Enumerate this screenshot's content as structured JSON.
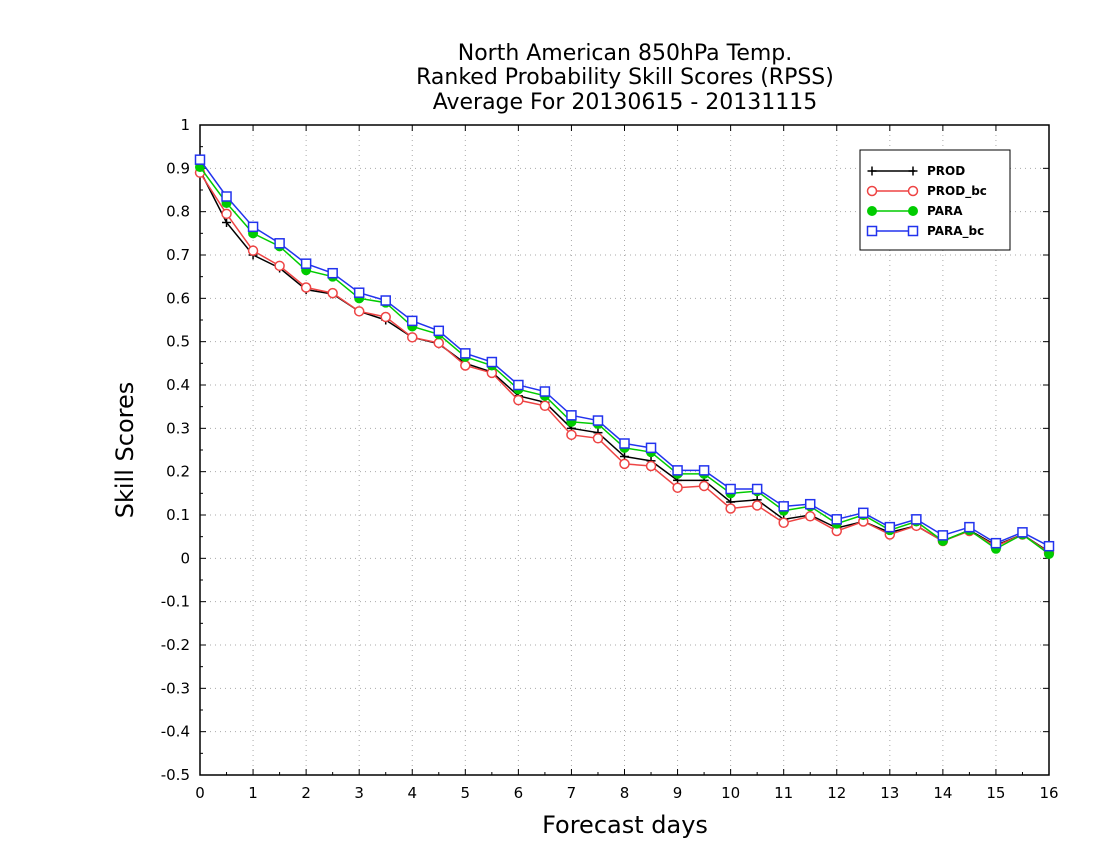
{
  "chart_data": {
    "type": "line",
    "title_lines": [
      "North American 850hPa Temp.",
      "Ranked Probability Skill Scores (RPSS)",
      "Average For 20130615 - 20131115"
    ],
    "xlabel": "Forecast days",
    "ylabel": "Skill Scores",
    "xlim": [
      0,
      16
    ],
    "ylim": [
      -0.5,
      1
    ],
    "x_ticks": [
      "0",
      "1",
      "2",
      "3",
      "4",
      "5",
      "6",
      "7",
      "8",
      "9",
      "10",
      "11",
      "12",
      "13",
      "14",
      "15",
      "16"
    ],
    "y_ticks": [
      "-0.5",
      "-0.4",
      "-0.3",
      "-0.2",
      "-0.1",
      "0",
      "0.1",
      "0.2",
      "0.3",
      "0.4",
      "0.5",
      "0.6",
      "0.7",
      "0.8",
      "0.9",
      "1"
    ],
    "grid": true,
    "legend_position": "top-right",
    "x": [
      0,
      0.5,
      1,
      1.5,
      2,
      2.5,
      3,
      3.5,
      4,
      4.5,
      5,
      5.5,
      6,
      6.5,
      7,
      7.5,
      8,
      8.5,
      9,
      9.5,
      10,
      10.5,
      11,
      11.5,
      12,
      12.5,
      13,
      13.5,
      14,
      14.5,
      15,
      15.5,
      16
    ],
    "series": [
      {
        "name": "PROD",
        "color": "#000000",
        "marker": "plus",
        "values": [
          0.895,
          0.775,
          0.7,
          0.67,
          0.62,
          0.61,
          0.57,
          0.55,
          0.51,
          0.495,
          0.45,
          0.43,
          0.375,
          0.36,
          0.3,
          0.29,
          0.235,
          0.225,
          0.18,
          0.18,
          0.13,
          0.135,
          0.09,
          0.1,
          0.07,
          0.085,
          0.06,
          0.075,
          0.04,
          0.065,
          0.03,
          0.055,
          0.015
        ]
      },
      {
        "name": "PROD_bc",
        "color": "#ee4444",
        "marker": "open-circle",
        "values": [
          0.89,
          0.795,
          0.71,
          0.675,
          0.625,
          0.612,
          0.57,
          0.557,
          0.51,
          0.497,
          0.445,
          0.428,
          0.365,
          0.352,
          0.285,
          0.277,
          0.218,
          0.213,
          0.163,
          0.167,
          0.115,
          0.122,
          0.082,
          0.097,
          0.063,
          0.085,
          0.055,
          0.075,
          0.04,
          0.063,
          0.028,
          0.055,
          0.013
        ]
      },
      {
        "name": "PARA",
        "color": "#00cc00",
        "marker": "filled-circle",
        "values": [
          0.903,
          0.82,
          0.75,
          0.72,
          0.665,
          0.65,
          0.6,
          0.59,
          0.535,
          0.517,
          0.465,
          0.445,
          0.39,
          0.375,
          0.315,
          0.31,
          0.255,
          0.245,
          0.195,
          0.195,
          0.15,
          0.155,
          0.11,
          0.12,
          0.08,
          0.1,
          0.065,
          0.085,
          0.04,
          0.065,
          0.022,
          0.055,
          0.01
        ]
      },
      {
        "name": "PARA_bc",
        "color": "#2233ee",
        "marker": "open-square",
        "values": [
          0.92,
          0.835,
          0.765,
          0.727,
          0.68,
          0.658,
          0.613,
          0.595,
          0.548,
          0.525,
          0.473,
          0.453,
          0.4,
          0.385,
          0.33,
          0.318,
          0.265,
          0.255,
          0.203,
          0.203,
          0.16,
          0.16,
          0.12,
          0.125,
          0.09,
          0.105,
          0.072,
          0.09,
          0.053,
          0.072,
          0.035,
          0.06,
          0.028
        ]
      }
    ]
  }
}
